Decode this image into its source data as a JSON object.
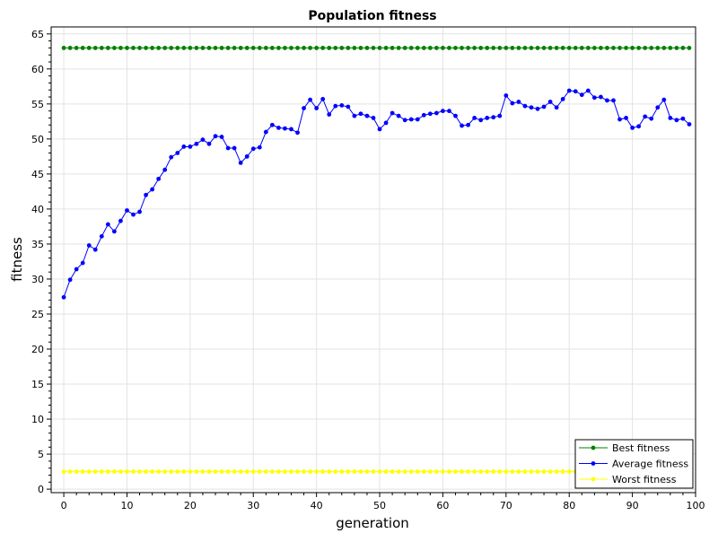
{
  "chart_data": {
    "type": "line",
    "title": "Population fitness",
    "xlabel": "generation",
    "ylabel": "fitness",
    "xlim": [
      -2,
      100
    ],
    "ylim": [
      -0.5,
      66
    ],
    "xticks": [
      0,
      10,
      20,
      30,
      40,
      50,
      60,
      70,
      80,
      90,
      100
    ],
    "yticks": [
      0,
      5,
      10,
      15,
      20,
      25,
      30,
      35,
      40,
      45,
      50,
      55,
      60,
      65
    ],
    "grid": true,
    "legend_position": "bottom-right",
    "x": [
      0,
      1,
      2,
      3,
      4,
      5,
      6,
      7,
      8,
      9,
      10,
      11,
      12,
      13,
      14,
      15,
      16,
      17,
      18,
      19,
      20,
      21,
      22,
      23,
      24,
      25,
      26,
      27,
      28,
      29,
      30,
      31,
      32,
      33,
      34,
      35,
      36,
      37,
      38,
      39,
      40,
      41,
      42,
      43,
      44,
      45,
      46,
      47,
      48,
      49,
      50,
      51,
      52,
      53,
      54,
      55,
      56,
      57,
      58,
      59,
      60,
      61,
      62,
      63,
      64,
      65,
      66,
      67,
      68,
      69,
      70,
      71,
      72,
      73,
      74,
      75,
      76,
      77,
      78,
      79,
      80,
      81,
      82,
      83,
      84,
      85,
      86,
      87,
      88,
      89,
      90,
      91,
      92,
      93,
      94,
      95,
      96,
      97,
      98,
      99
    ],
    "series": [
      {
        "name": "Best fitness",
        "color": "#008000",
        "values": [
          63,
          63,
          63,
          63,
          63,
          63,
          63,
          63,
          63,
          63,
          63,
          63,
          63,
          63,
          63,
          63,
          63,
          63,
          63,
          63,
          63,
          63,
          63,
          63,
          63,
          63,
          63,
          63,
          63,
          63,
          63,
          63,
          63,
          63,
          63,
          63,
          63,
          63,
          63,
          63,
          63,
          63,
          63,
          63,
          63,
          63,
          63,
          63,
          63,
          63,
          63,
          63,
          63,
          63,
          63,
          63,
          63,
          63,
          63,
          63,
          63,
          63,
          63,
          63,
          63,
          63,
          63,
          63,
          63,
          63,
          63,
          63,
          63,
          63,
          63,
          63,
          63,
          63,
          63,
          63,
          63,
          63,
          63,
          63,
          63,
          63,
          63,
          63,
          63,
          63,
          63,
          63,
          63,
          63,
          63,
          63,
          63,
          63,
          63,
          63
        ]
      },
      {
        "name": "Average fitness",
        "color": "#0000ff",
        "values": [
          27.4,
          29.9,
          31.4,
          32.3,
          34.8,
          34.2,
          36.1,
          37.8,
          36.8,
          38.3,
          39.8,
          39.2,
          39.6,
          42.0,
          42.8,
          44.3,
          45.6,
          47.4,
          48.0,
          48.9,
          48.9,
          49.3,
          49.9,
          49.3,
          50.4,
          50.3,
          48.7,
          48.7,
          46.6,
          47.5,
          48.6,
          48.8,
          51.0,
          52.0,
          51.6,
          51.5,
          51.4,
          50.9,
          54.4,
          55.6,
          54.4,
          55.7,
          53.5,
          54.7,
          54.8,
          54.6,
          53.3,
          53.6,
          53.3,
          53.0,
          51.4,
          52.3,
          53.7,
          53.3,
          52.7,
          52.8,
          52.8,
          53.4,
          53.6,
          53.7,
          54.0,
          54.0,
          53.3,
          51.9,
          52.0,
          53.0,
          52.7,
          53.0,
          53.1,
          53.3,
          56.2,
          55.1,
          55.3,
          54.7,
          54.5,
          54.3,
          54.6,
          55.3,
          54.5,
          55.7,
          56.9,
          56.8,
          56.3,
          56.9,
          55.9,
          56.0,
          55.5,
          55.5,
          52.8,
          53.0,
          51.6,
          51.8,
          53.2,
          52.9,
          54.5,
          55.6,
          53.0,
          52.7,
          52.9,
          52.1
        ]
      },
      {
        "name": "Worst fitness",
        "color": "#ffff00",
        "values": [
          2.5,
          2.5,
          2.5,
          2.5,
          2.5,
          2.5,
          2.5,
          2.5,
          2.5,
          2.5,
          2.5,
          2.5,
          2.5,
          2.5,
          2.5,
          2.5,
          2.5,
          2.5,
          2.5,
          2.5,
          2.5,
          2.5,
          2.5,
          2.5,
          2.5,
          2.5,
          2.5,
          2.5,
          2.5,
          2.5,
          2.5,
          2.5,
          2.5,
          2.5,
          2.5,
          2.5,
          2.5,
          2.5,
          2.5,
          2.5,
          2.5,
          2.5,
          2.5,
          2.5,
          2.5,
          2.5,
          2.5,
          2.5,
          2.5,
          2.5,
          2.5,
          2.5,
          2.5,
          2.5,
          2.5,
          2.5,
          2.5,
          2.5,
          2.5,
          2.5,
          2.5,
          2.5,
          2.5,
          2.5,
          2.5,
          2.5,
          2.5,
          2.5,
          2.5,
          2.5,
          2.5,
          2.5,
          2.5,
          2.5,
          2.5,
          2.5,
          2.5,
          2.5,
          2.5,
          2.5,
          2.5,
          2.5,
          2.5,
          2.5,
          2.5,
          2.5,
          2.5,
          2.5,
          2.5,
          2.5,
          2.5,
          2.5,
          2.5,
          2.5,
          2.5,
          2.5,
          2.5,
          2.5,
          2.5,
          2.5
        ]
      }
    ]
  }
}
